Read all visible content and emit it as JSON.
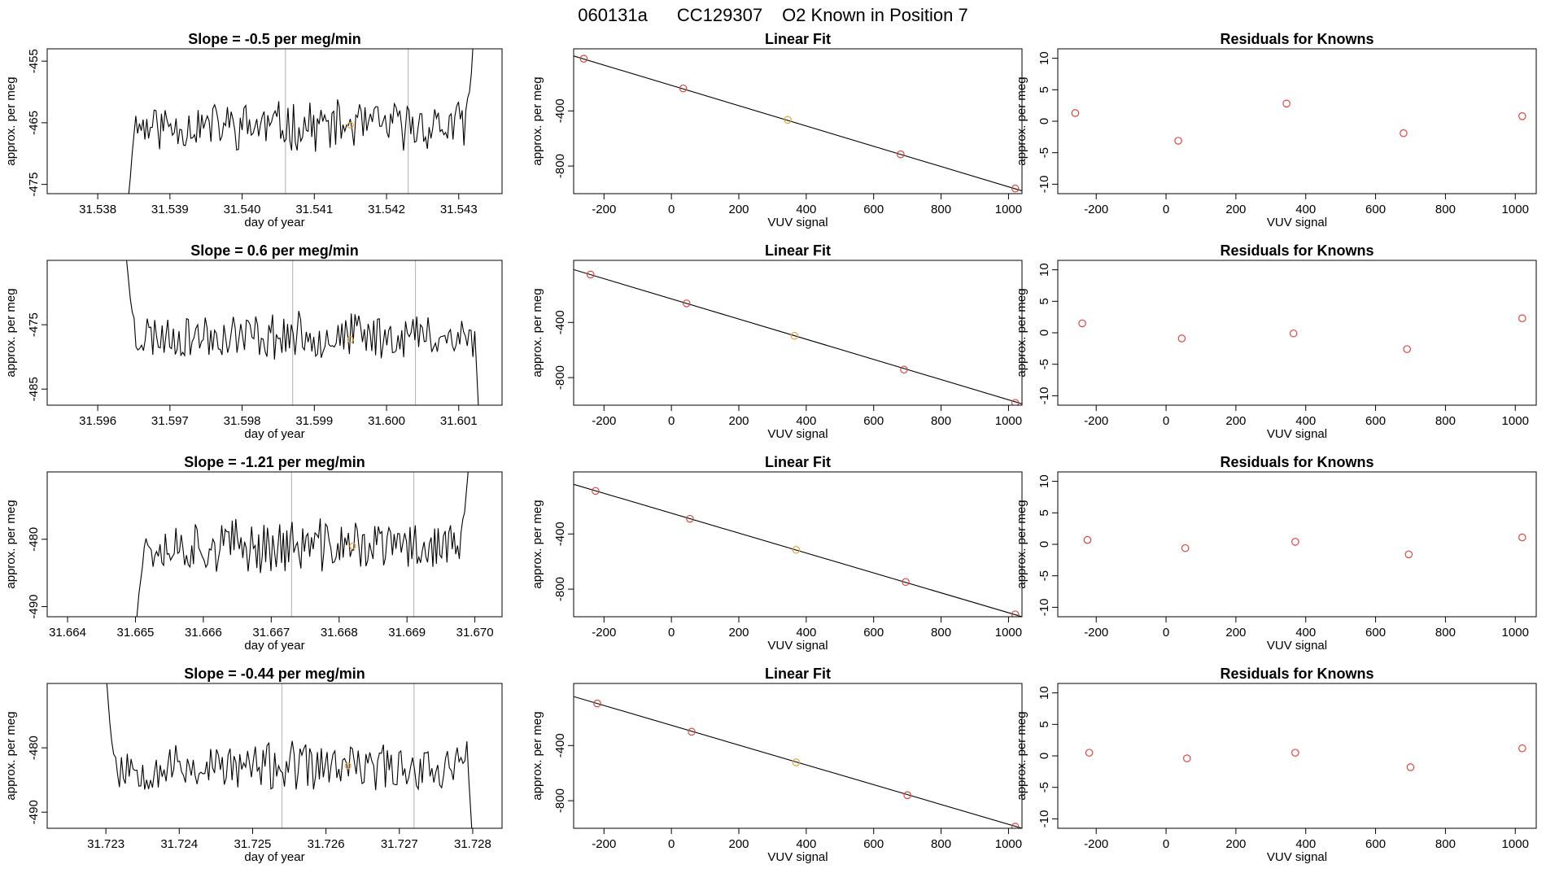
{
  "page_title": {
    "run_id": "060131a",
    "cylinder": "CC129307",
    "description": "O2 Known in Position  7"
  },
  "colors": {
    "known_point": "#d9473f",
    "current_point": "#e8a33a",
    "line": "#000000",
    "vline": "#bbbbbb"
  },
  "chart_data": [
    {
      "type": "line",
      "kind": "timeseries",
      "row": 1,
      "title": "Slope =  -0.5  per meg/min",
      "xlabel": "day of year",
      "ylabel": "approx. per meg",
      "xlim": [
        31.5373,
        31.5436
      ],
      "ylim": [
        -476.5,
        -453
      ],
      "xticks": [
        31.538,
        31.539,
        31.54,
        31.541,
        31.542,
        31.543
      ],
      "xtick_labels": [
        "31.538",
        "31.539",
        "31.540",
        "31.541",
        "31.542",
        "31.543"
      ],
      "yticks": [
        -455,
        -465,
        -475
      ],
      "ytick_labels": [
        "-455",
        "-465",
        "-475"
      ],
      "vlines": [
        31.5406,
        31.5423
      ],
      "marker": {
        "x": 31.5415,
        "y": -465.4
      },
      "series": {
        "x_start": 31.5384,
        "x_end": 31.5432,
        "base": -465.5,
        "amp": 2.2,
        "seed": 11,
        "start_values": [
          -480,
          -477,
          -474,
          -470,
          -467
        ],
        "end_values": [
          -463,
          -461,
          -460,
          -457,
          -452
        ]
      }
    },
    {
      "type": "scatter",
      "kind": "fit",
      "row": 1,
      "title": "Linear Fit",
      "xlabel": "VUV signal",
      "ylabel": "approx. per meg",
      "xlim": [
        -290,
        1040
      ],
      "ylim": [
        -1000,
        50
      ],
      "xticks": [
        -200,
        0,
        200,
        400,
        600,
        800,
        1000
      ],
      "xtick_labels": [
        "-200",
        "0",
        "200",
        "400",
        "600",
        "800",
        "1000"
      ],
      "yticks": [
        -400,
        -800
      ],
      "ytick_labels": [
        "-400",
        "-800"
      ],
      "line": {
        "x": [
          -290,
          1040
        ],
        "y": [
          -2,
          -980
        ]
      },
      "points": [
        {
          "x": -260,
          "y": -22,
          "kind": "known"
        },
        {
          "x": 35,
          "y": -237,
          "kind": "known"
        },
        {
          "x": 345,
          "y": -465,
          "kind": "current"
        },
        {
          "x": 680,
          "y": -715,
          "kind": "known"
        },
        {
          "x": 1020,
          "y": -963,
          "kind": "known"
        }
      ]
    },
    {
      "type": "scatter",
      "kind": "residuals",
      "row": 1,
      "title": "Residuals for Knowns",
      "xlabel": "VUV signal",
      "ylabel": "approx. per meg",
      "xlim": [
        -310,
        1060
      ],
      "ylim": [
        -11.5,
        11.5
      ],
      "xticks": [
        -200,
        0,
        200,
        400,
        600,
        800,
        1000
      ],
      "xtick_labels": [
        "-200",
        "0",
        "200",
        "400",
        "600",
        "800",
        "1000"
      ],
      "yticks": [
        10,
        5,
        0,
        -5,
        -10
      ],
      "ytick_labels": [
        "10",
        "5",
        "0",
        "-5",
        "-10"
      ],
      "points": [
        {
          "x": -260,
          "y": 1.3
        },
        {
          "x": 35,
          "y": -3.1
        },
        {
          "x": 345,
          "y": 2.8
        },
        {
          "x": 680,
          "y": -1.9
        },
        {
          "x": 1020,
          "y": 0.8
        }
      ]
    },
    {
      "type": "line",
      "kind": "timeseries",
      "row": 2,
      "title": "Slope =  0.6  per meg/min",
      "xlabel": "day of year",
      "ylabel": "approx. per meg",
      "xlim": [
        31.5953,
        31.6016
      ],
      "ylim": [
        -487.5,
        -465
      ],
      "xticks": [
        31.596,
        31.597,
        31.598,
        31.599,
        31.6,
        31.601
      ],
      "xtick_labels": [
        "31.596",
        "31.597",
        "31.598",
        "31.599",
        "31.600",
        "31.601"
      ],
      "yticks": [
        -475,
        -485
      ],
      "ytick_labels": [
        "-475",
        "-485"
      ],
      "vlines": [
        31.5987,
        31.6004
      ],
      "marker": {
        "x": 31.5995,
        "y": -477.3
      },
      "series": {
        "x_start": 31.5964,
        "x_end": 31.6013,
        "base": -476.7,
        "amp": 2.0,
        "seed": 23,
        "start_values": [
          -465,
          -468,
          -471,
          -473,
          -474
        ],
        "end_values": [
          -480,
          -476,
          -482,
          -488,
          -492
        ]
      }
    },
    {
      "type": "scatter",
      "kind": "fit",
      "row": 2,
      "title": "Linear Fit",
      "xlabel": "VUV signal",
      "ylabel": "approx. per meg",
      "xlim": [
        -290,
        1040
      ],
      "ylim": [
        -1000,
        50
      ],
      "xticks": [
        -200,
        0,
        200,
        400,
        600,
        800,
        1000
      ],
      "xtick_labels": [
        "-200",
        "0",
        "200",
        "400",
        "600",
        "800",
        "1000"
      ],
      "yticks": [
        -400,
        -800
      ],
      "ytick_labels": [
        "-400",
        "-800"
      ],
      "line": {
        "x": [
          -290,
          1040
        ],
        "y": [
          -17,
          -990
        ]
      },
      "points": [
        {
          "x": -240,
          "y": -53,
          "kind": "known"
        },
        {
          "x": 45,
          "y": -262,
          "kind": "known"
        },
        {
          "x": 365,
          "y": -497,
          "kind": "current"
        },
        {
          "x": 690,
          "y": -742,
          "kind": "known"
        },
        {
          "x": 1020,
          "y": -983,
          "kind": "known"
        }
      ]
    },
    {
      "type": "scatter",
      "kind": "residuals",
      "row": 2,
      "title": "Residuals for Knowns",
      "xlabel": "VUV signal",
      "ylabel": "approx. per meg",
      "xlim": [
        -310,
        1060
      ],
      "ylim": [
        -11.5,
        11.5
      ],
      "xticks": [
        -200,
        0,
        200,
        400,
        600,
        800,
        1000
      ],
      "xtick_labels": [
        "-200",
        "0",
        "200",
        "400",
        "600",
        "800",
        "1000"
      ],
      "yticks": [
        10,
        5,
        0,
        -5,
        -10
      ],
      "ytick_labels": [
        "10",
        "5",
        "0",
        "-5",
        "-10"
      ],
      "points": [
        {
          "x": -240,
          "y": 1.5
        },
        {
          "x": 45,
          "y": -0.9
        },
        {
          "x": 365,
          "y": -0.1
        },
        {
          "x": 690,
          "y": -2.6
        },
        {
          "x": 1020,
          "y": 2.3
        }
      ]
    },
    {
      "type": "line",
      "kind": "timeseries",
      "row": 3,
      "title": "Slope =  -1.21  per meg/min",
      "xlabel": "day of year",
      "ylabel": "approx. per meg",
      "xlim": [
        31.6637,
        31.6704
      ],
      "ylim": [
        -491.5,
        -470
      ],
      "xticks": [
        31.664,
        31.665,
        31.666,
        31.667,
        31.668,
        31.669,
        31.67
      ],
      "xtick_labels": [
        "31.664",
        "31.665",
        "31.666",
        "31.667",
        "31.668",
        "31.669",
        "31.670"
      ],
      "yticks": [
        -480,
        -490
      ],
      "ytick_labels": [
        "-480",
        "-490"
      ],
      "vlines": [
        31.6673,
        31.6691
      ],
      "marker": {
        "x": 31.6682,
        "y": -481.0
      },
      "series": {
        "x_start": 31.665,
        "x_end": 31.6699,
        "base": -481.0,
        "amp": 2.2,
        "seed": 37,
        "start_values": [
          -494,
          -491,
          -488,
          -486,
          -484
        ],
        "end_values": [
          -479,
          -477,
          -476,
          -473,
          -470
        ]
      }
    },
    {
      "type": "scatter",
      "kind": "fit",
      "row": 3,
      "title": "Linear Fit",
      "xlabel": "VUV signal",
      "ylabel": "approx. per meg",
      "xlim": [
        -290,
        1040
      ],
      "ylim": [
        -1000,
        50
      ],
      "xticks": [
        -200,
        0,
        200,
        400,
        600,
        800,
        1000
      ],
      "xtick_labels": [
        "-200",
        "0",
        "200",
        "400",
        "600",
        "800",
        "1000"
      ],
      "yticks": [
        -400,
        -800
      ],
      "ytick_labels": [
        "-400",
        "-800"
      ],
      "line": {
        "x": [
          -290,
          1040
        ],
        "y": [
          -40,
          -1000
        ]
      },
      "points": [
        {
          "x": -225,
          "y": -88,
          "kind": "known"
        },
        {
          "x": 55,
          "y": -290,
          "kind": "known"
        },
        {
          "x": 370,
          "y": -515,
          "kind": "current"
        },
        {
          "x": 695,
          "y": -748,
          "kind": "known"
        },
        {
          "x": 1020,
          "y": -983,
          "kind": "known"
        }
      ]
    },
    {
      "type": "scatter",
      "kind": "residuals",
      "row": 3,
      "title": "Residuals for Knowns",
      "xlabel": "VUV signal",
      "ylabel": "approx. per meg",
      "xlim": [
        -310,
        1060
      ],
      "ylim": [
        -11.5,
        11.5
      ],
      "xticks": [
        -200,
        0,
        200,
        400,
        600,
        800,
        1000
      ],
      "xtick_labels": [
        "-200",
        "0",
        "200",
        "400",
        "600",
        "800",
        "1000"
      ],
      "yticks": [
        10,
        5,
        0,
        -5,
        -10
      ],
      "ytick_labels": [
        "10",
        "5",
        "0",
        "-5",
        "-10"
      ],
      "points": [
        {
          "x": -225,
          "y": 0.7
        },
        {
          "x": 55,
          "y": -0.6
        },
        {
          "x": 370,
          "y": 0.4
        },
        {
          "x": 695,
          "y": -1.6
        },
        {
          "x": 1020,
          "y": 1.1
        }
      ]
    },
    {
      "type": "line",
      "kind": "timeseries",
      "row": 4,
      "title": "Slope =  -0.44  per meg/min",
      "xlabel": "day of year",
      "ylabel": "approx. per meg",
      "xlim": [
        31.7222,
        31.7284
      ],
      "ylim": [
        -492.5,
        -470
      ],
      "xticks": [
        31.723,
        31.724,
        31.725,
        31.726,
        31.727,
        31.728
      ],
      "xtick_labels": [
        "31.723",
        "31.724",
        "31.725",
        "31.726",
        "31.727",
        "31.728"
      ],
      "yticks": [
        -480,
        -490
      ],
      "ytick_labels": [
        "-480",
        "-490"
      ],
      "vlines": [
        31.7254,
        31.7272
      ],
      "marker": {
        "x": 31.7263,
        "y": -482.8
      },
      "series": {
        "x_start": 31.723,
        "x_end": 31.728,
        "base": -483.0,
        "amp": 2.1,
        "seed": 53,
        "start_values": [
          -468,
          -472,
          -476,
          -479,
          -481
        ],
        "end_values": [
          -482,
          -479,
          -485,
          -490,
          -495
        ]
      }
    },
    {
      "type": "scatter",
      "kind": "fit",
      "row": 4,
      "title": "Linear Fit",
      "xlabel": "VUV signal",
      "ylabel": "approx. per meg",
      "xlim": [
        -290,
        1040
      ],
      "ylim": [
        -1000,
        50
      ],
      "xticks": [
        -200,
        0,
        200,
        400,
        600,
        800,
        1000
      ],
      "xtick_labels": [
        "-200",
        "0",
        "200",
        "400",
        "600",
        "800",
        "1000"
      ],
      "yticks": [
        -400,
        -800
      ],
      "ytick_labels": [
        "-400",
        "-800"
      ],
      "line": {
        "x": [
          -290,
          1040
        ],
        "y": [
          -45,
          -1000
        ]
      },
      "points": [
        {
          "x": -220,
          "y": -95,
          "kind": "known"
        },
        {
          "x": 60,
          "y": -300,
          "kind": "known"
        },
        {
          "x": 370,
          "y": -522,
          "kind": "current"
        },
        {
          "x": 700,
          "y": -760,
          "kind": "known"
        },
        {
          "x": 1020,
          "y": -988,
          "kind": "known"
        }
      ]
    },
    {
      "type": "scatter",
      "kind": "residuals",
      "row": 4,
      "title": "Residuals for Knowns",
      "xlabel": "VUV signal",
      "ylabel": "approx. per meg",
      "xlim": [
        -310,
        1060
      ],
      "ylim": [
        -11.5,
        11.5
      ],
      "xticks": [
        -200,
        0,
        200,
        400,
        600,
        800,
        1000
      ],
      "xtick_labels": [
        "-200",
        "0",
        "200",
        "400",
        "600",
        "800",
        "1000"
      ],
      "yticks": [
        10,
        5,
        0,
        -5,
        -10
      ],
      "ytick_labels": [
        "10",
        "5",
        "0",
        "-5",
        "-10"
      ],
      "points": [
        {
          "x": -220,
          "y": 0.5
        },
        {
          "x": 60,
          "y": -0.4
        },
        {
          "x": 370,
          "y": 0.5
        },
        {
          "x": 700,
          "y": -1.8
        },
        {
          "x": 1020,
          "y": 1.2
        }
      ]
    }
  ]
}
